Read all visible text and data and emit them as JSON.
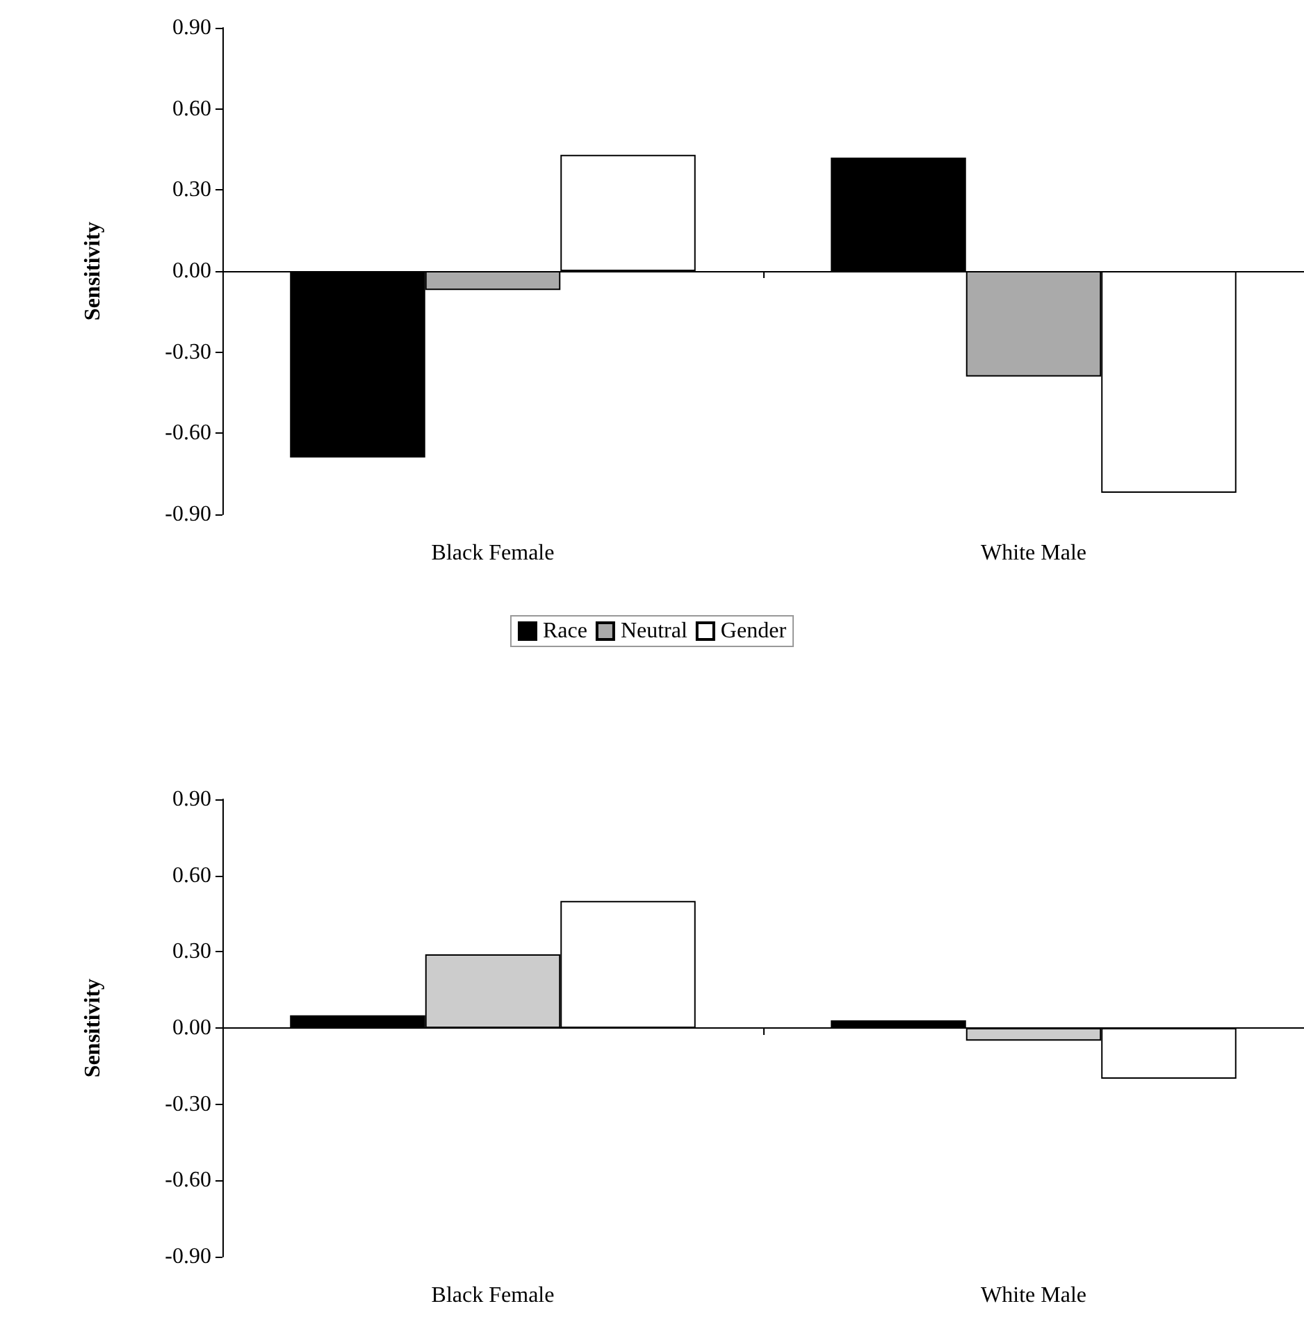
{
  "chart_data": [
    {
      "type": "bar",
      "ylabel": "Sensitivity",
      "categories": [
        "Black Female",
        "White Male"
      ],
      "ylim": [
        -0.9,
        0.9
      ],
      "yticks": [
        {
          "value": 0.9,
          "label": "0.90"
        },
        {
          "value": 0.6,
          "label": "0.60"
        },
        {
          "value": 0.3,
          "label": "0.30"
        },
        {
          "value": 0,
          "label": "0.00"
        },
        {
          "value": -0.3,
          "label": "-0.30"
        },
        {
          "value": -0.6,
          "label": "-0.60"
        },
        {
          "value": -0.9,
          "label": "-0.90"
        }
      ],
      "grid": false,
      "ref_lines": [
        {
          "axis": "y",
          "value": 0
        }
      ],
      "legend": "bottom",
      "series": [
        {
          "name": "Race",
          "color": "#000000",
          "values": [
            -0.69,
            0.42
          ]
        },
        {
          "name": "Neutral",
          "color": "#aaaaaa",
          "values": [
            -0.07,
            -0.39
          ]
        },
        {
          "name": "Gender",
          "color": "#ffffff",
          "values": [
            0.43,
            -0.82
          ]
        }
      ]
    },
    {
      "type": "bar",
      "ylabel": "Sensitivity",
      "categories": [
        "Black Female",
        "White Male"
      ],
      "ylim": [
        -0.9,
        0.9
      ],
      "yticks": [
        {
          "value": 0.9,
          "label": "0.90"
        },
        {
          "value": 0.6,
          "label": "0.60"
        },
        {
          "value": 0.3,
          "label": "0.30"
        },
        {
          "value": 0,
          "label": "0.00"
        },
        {
          "value": -0.3,
          "label": "-0.30"
        },
        {
          "value": -0.6,
          "label": "-0.60"
        },
        {
          "value": -0.9,
          "label": "-0.90"
        }
      ],
      "grid": false,
      "ref_lines": [
        {
          "axis": "y",
          "value": 0
        }
      ],
      "series": [
        {
          "color": "#000000",
          "values": [
            0.05,
            0.03
          ]
        },
        {
          "color": "#cccccc",
          "values": [
            0.29,
            -0.05
          ]
        },
        {
          "color": "#ffffff",
          "values": [
            0.5,
            -0.2
          ]
        }
      ]
    }
  ]
}
